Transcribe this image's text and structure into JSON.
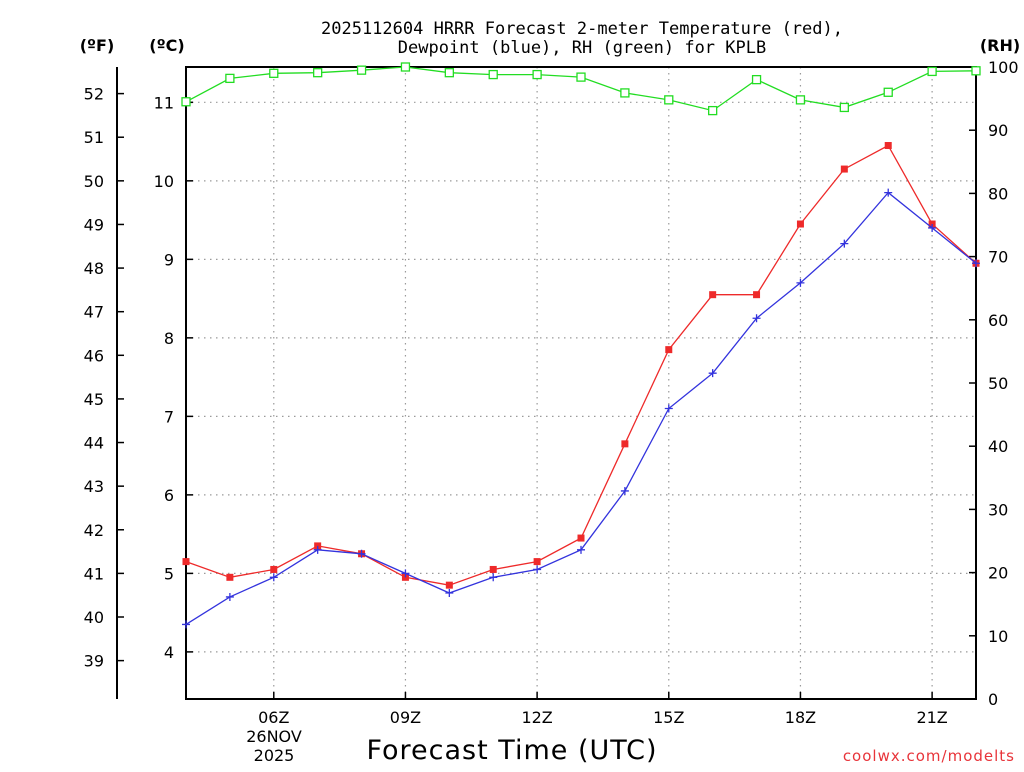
{
  "chart_data": {
    "type": "line",
    "title_lines": [
      "2025112604 HRRR Forecast 2-meter Temperature (red),",
      "Dewpoint (blue), RH (green) for KPLB"
    ],
    "xlabel": "Forecast Time (UTC)",
    "date_lines": [
      "26NOV",
      "2025"
    ],
    "credit": "coolwx.com/modelts",
    "unit_labels": {
      "fahrenheit": "(ºF)",
      "celsius": "(ºC)",
      "rh": "(RH)"
    },
    "hours": [
      4,
      5,
      6,
      7,
      8,
      9,
      10,
      11,
      12,
      13,
      14,
      15,
      16,
      17,
      18,
      19,
      20,
      21,
      22
    ],
    "x_range": [
      4,
      22
    ],
    "x_ticks": [
      {
        "hour": 6,
        "label": "06Z"
      },
      {
        "hour": 9,
        "label": "09Z"
      },
      {
        "hour": 12,
        "label": "12Z"
      },
      {
        "hour": 15,
        "label": "15Z"
      },
      {
        "hour": 18,
        "label": "18Z"
      },
      {
        "hour": 21,
        "label": "21Z"
      }
    ],
    "celsius_range": [
      3.4,
      11.45
    ],
    "celsius_ticks": [
      "4",
      "5",
      "6",
      "7",
      "8",
      "9",
      "10",
      "11"
    ],
    "fahrenheit_ticks": [
      "39",
      "40",
      "41",
      "42",
      "43",
      "44",
      "45",
      "46",
      "47",
      "48",
      "49",
      "50",
      "51",
      "52"
    ],
    "rh_range": [
      0,
      100
    ],
    "rh_ticks": [
      "0",
      "10",
      "20",
      "30",
      "40",
      "50",
      "60",
      "70",
      "80",
      "90",
      "100"
    ],
    "series": [
      {
        "name": "Temperature",
        "unit": "C",
        "color": "#ee2a2a",
        "marker": "filled-square",
        "values": [
          5.15,
          4.95,
          5.05,
          5.35,
          5.25,
          4.95,
          4.85,
          5.05,
          5.15,
          5.45,
          6.65,
          7.85,
          8.55,
          8.55,
          9.45,
          10.15,
          10.45,
          9.45,
          8.95
        ]
      },
      {
        "name": "Dewpoint",
        "unit": "C",
        "color": "#3333dd",
        "marker": "plus",
        "values": [
          4.35,
          4.7,
          4.95,
          5.3,
          5.25,
          5.0,
          4.75,
          4.95,
          5.05,
          5.3,
          6.05,
          7.1,
          7.55,
          8.25,
          8.7,
          9.2,
          9.85,
          9.4,
          8.95
        ]
      },
      {
        "name": "RH",
        "unit": "%",
        "color": "#22dd22",
        "marker": "open-square",
        "values": [
          94.5,
          98.2,
          99.0,
          99.1,
          99.5,
          100.0,
          99.1,
          98.8,
          98.8,
          98.4,
          95.9,
          94.8,
          93.1,
          98.0,
          94.8,
          93.6,
          96.0,
          99.3,
          99.4
        ]
      }
    ],
    "grid": true,
    "grid_style": "dotted"
  }
}
